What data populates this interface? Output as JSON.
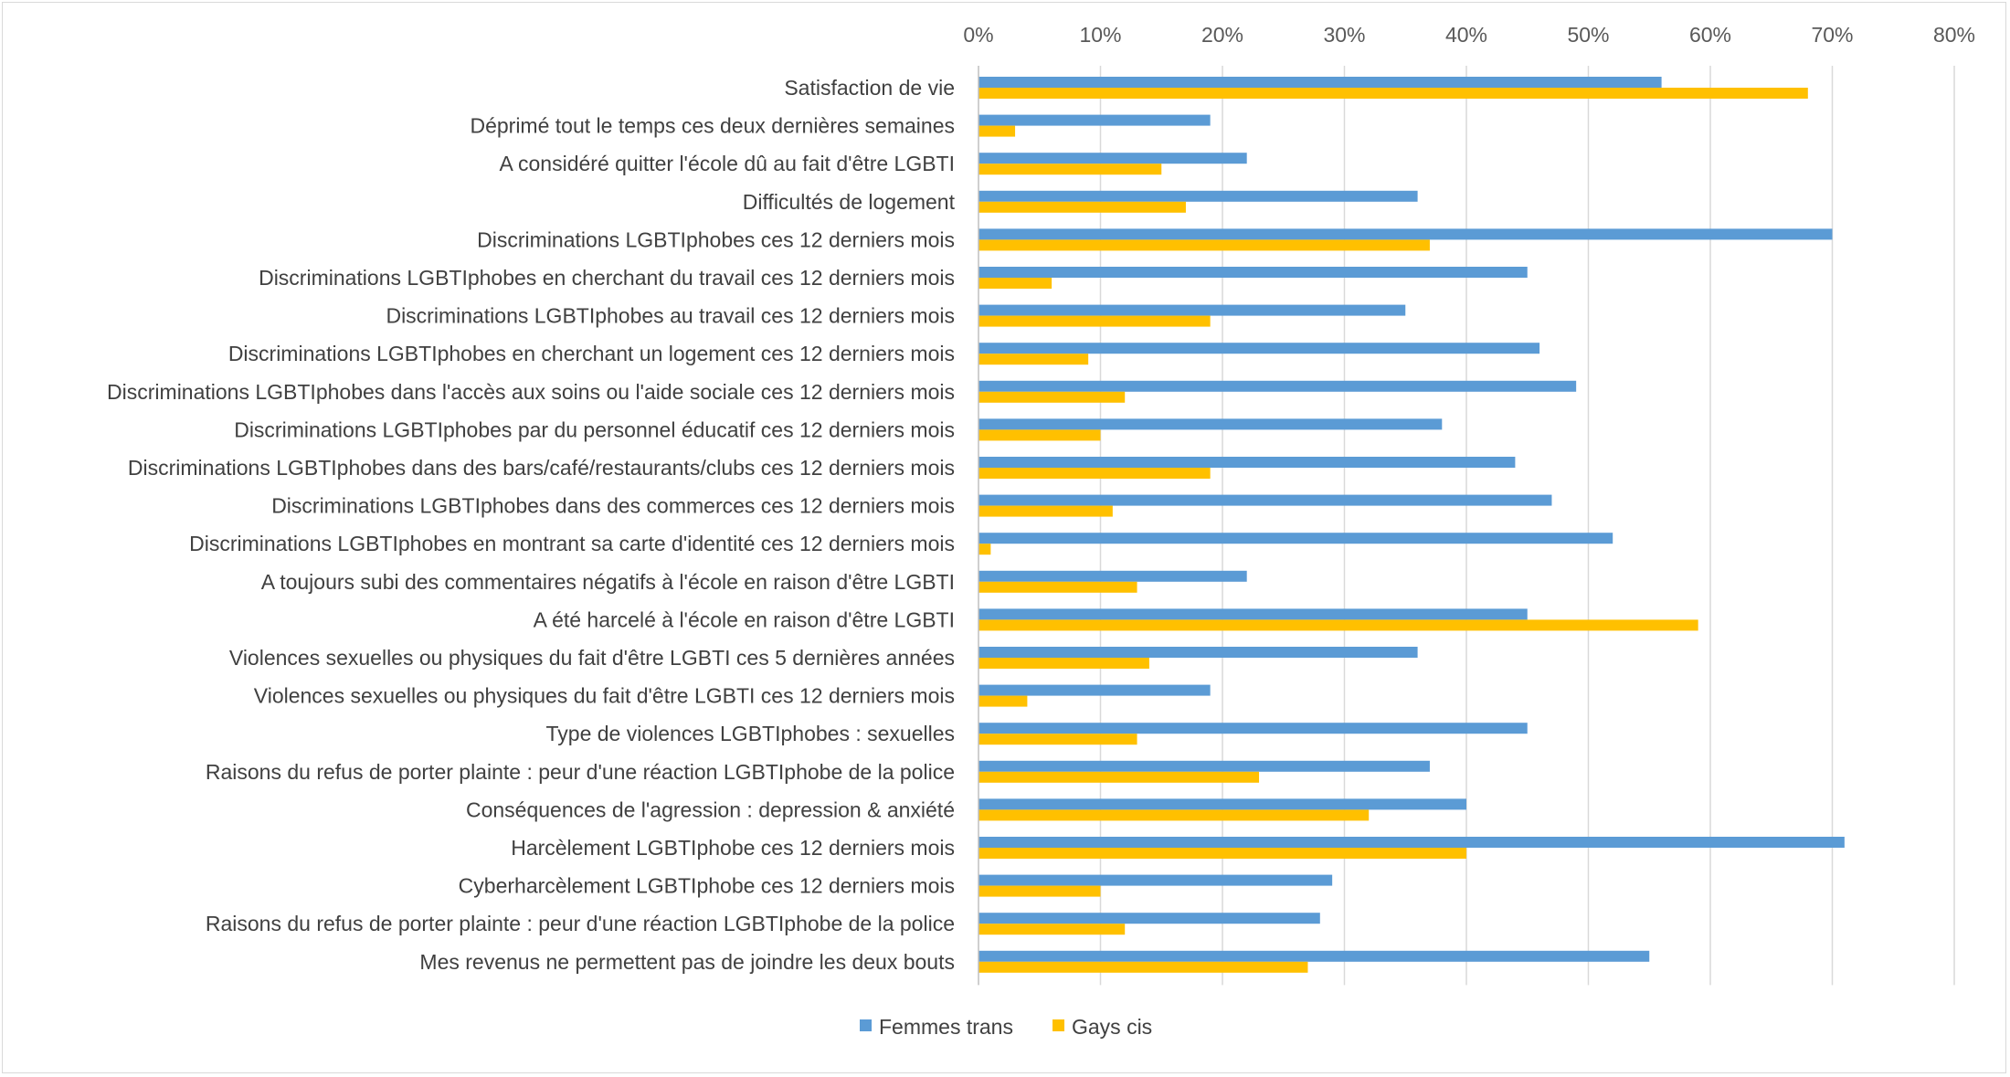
{
  "chart_data": {
    "type": "bar",
    "orientation": "horizontal",
    "title": "",
    "xlabel": "",
    "ylabel": "",
    "xlim": [
      0,
      80
    ],
    "x_unit": "%",
    "x_ticks": [
      "0%",
      "10%",
      "20%",
      "30%",
      "40%",
      "50%",
      "60%",
      "70%",
      "80%"
    ],
    "x_axis_position": "top",
    "gridlines": "vertical",
    "legend_position": "bottom",
    "categories": [
      "Satisfaction de vie",
      "Déprimé tout le temps ces deux dernières semaines",
      "A considéré quitter l'école dû au fait d'être LGBTI",
      "Difficultés de logement",
      "Discriminations LGBTIphobes ces 12 derniers mois",
      "Discriminations LGBTIphobes en cherchant du travail ces 12 derniers mois",
      "Discriminations LGBTIphobes au travail ces 12 derniers mois",
      "Discriminations LGBTIphobes en cherchant un logement ces 12 derniers mois",
      "Discriminations LGBTIphobes dans l'accès aux soins ou l'aide sociale ces 12 derniers mois",
      "Discriminations LGBTIphobes par du personnel éducatif ces 12 derniers mois",
      "Discriminations LGBTIphobes dans des bars/café/restaurants/clubs ces 12 derniers mois",
      "Discriminations LGBTIphobes dans des commerces ces 12 derniers mois",
      "Discriminations LGBTIphobes en montrant sa carte d'identité ces 12 derniers mois",
      "A toujours subi des commentaires négatifs à l'école en raison d'être LGBTI",
      "A été harcelé à l'école en raison d'être LGBTI",
      "Violences sexuelles ou physiques du fait d'être LGBTI ces 5 dernières années",
      "Violences sexuelles ou physiques du fait d'être LGBTI ces 12 derniers mois",
      "Type de violences LGBTIphobes : sexuelles",
      "Raisons du refus de porter plainte : peur d'une réaction LGBTIphobe de la police",
      "Conséquences de l'agression : depression & anxiété",
      "Harcèlement LGBTIphobe ces 12 derniers mois",
      "Cyberharcèlement LGBTIphobe ces 12 derniers mois",
      "Raisons du refus de porter plainte : peur d'une réaction LGBTIphobe de la police",
      "Mes revenus ne permettent pas de joindre les deux bouts"
    ],
    "series": [
      {
        "name": "Femmes trans",
        "color": "#5b9bd5",
        "values": [
          56,
          19,
          22,
          36,
          70,
          45,
          35,
          46,
          49,
          38,
          44,
          47,
          52,
          22,
          45,
          36,
          19,
          45,
          37,
          40,
          71,
          29,
          28,
          55
        ]
      },
      {
        "name": "Gays cis",
        "color": "#ffc000",
        "values": [
          68,
          3,
          15,
          17,
          37,
          6,
          19,
          9,
          12,
          10,
          19,
          11,
          1,
          13,
          59,
          14,
          4,
          13,
          23,
          32,
          40,
          10,
          12,
          27
        ]
      }
    ]
  }
}
